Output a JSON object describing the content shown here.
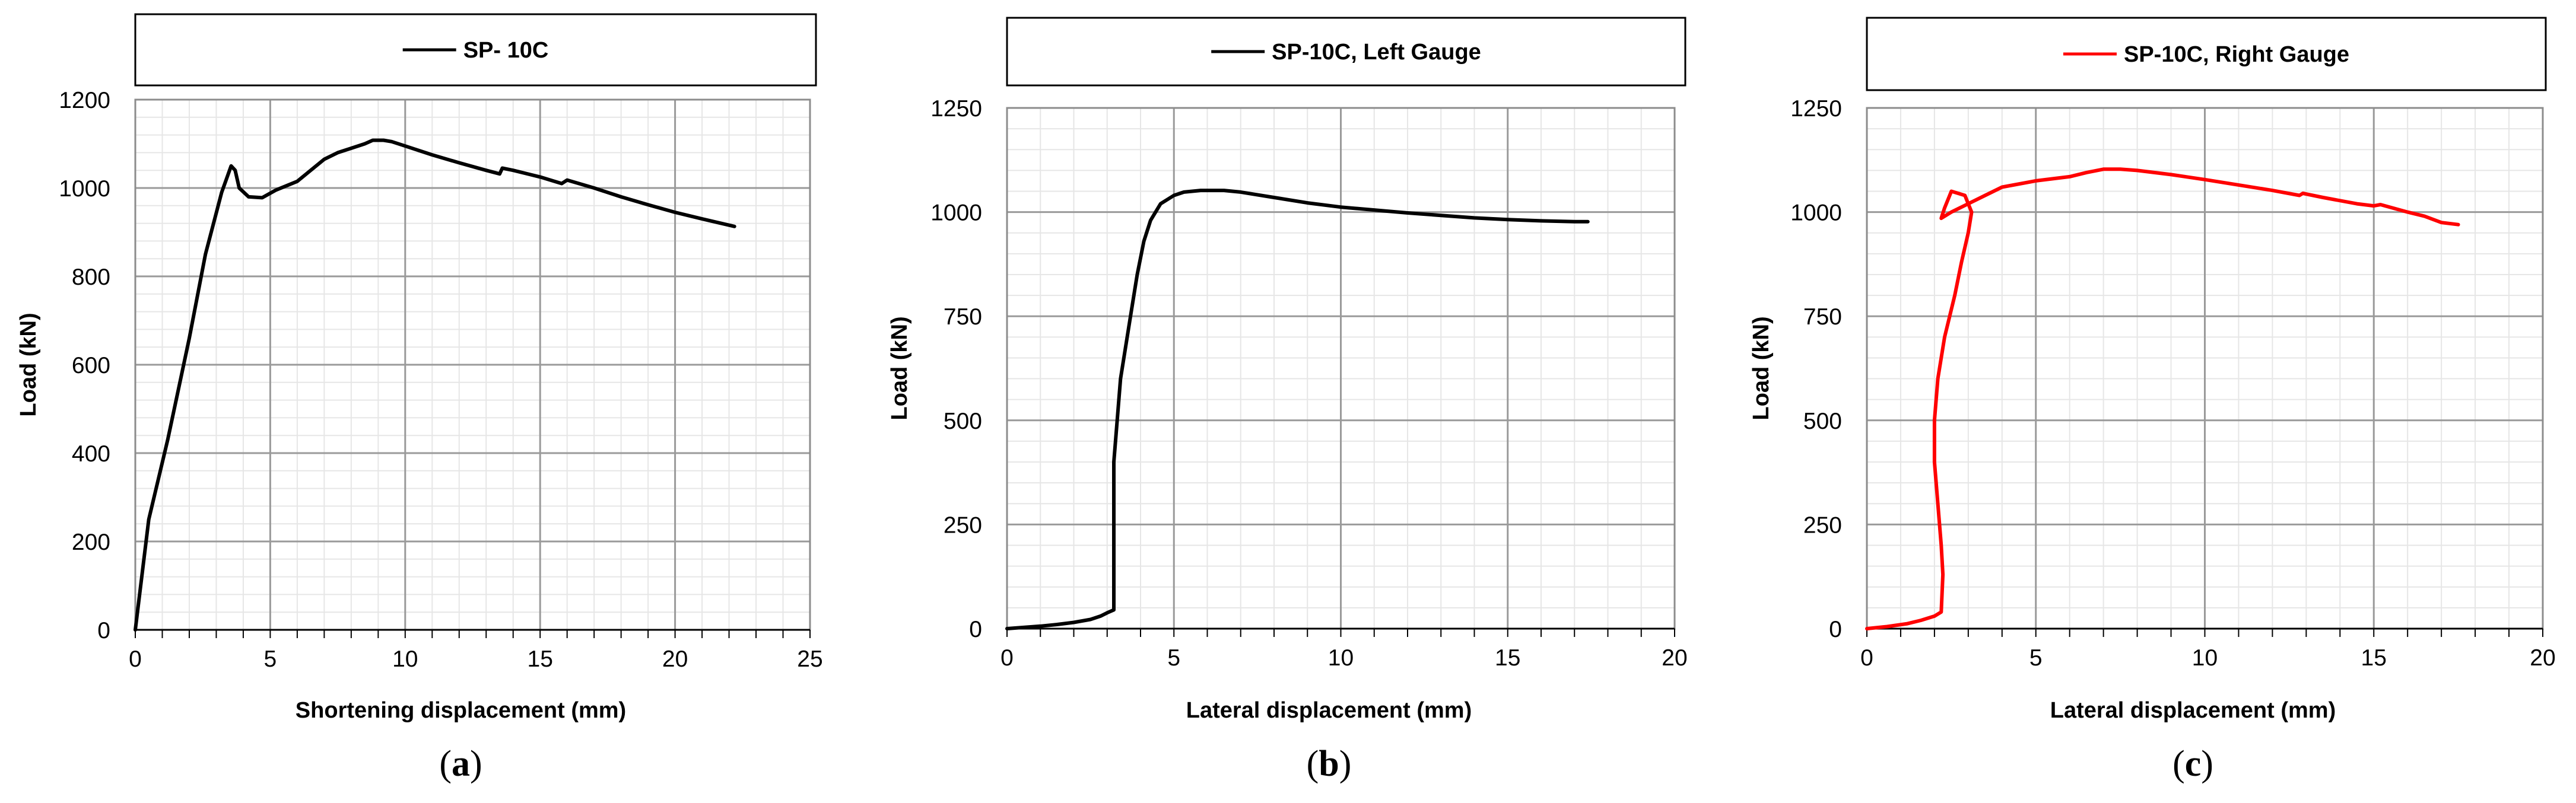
{
  "chart_data": [
    {
      "type": "line",
      "panel_label": "a",
      "legend_position": "top",
      "grid": true,
      "xlabel": "Shortening displacement (mm)",
      "ylabel": "Load (kN)",
      "xlim": [
        0,
        25
      ],
      "ylim": [
        0,
        1200
      ],
      "xticks": [
        0,
        5,
        10,
        15,
        20,
        25
      ],
      "yticks": [
        0,
        200,
        400,
        600,
        800,
        1000,
        1200
      ],
      "series": [
        {
          "name": "SP- 10C",
          "color": "#000000",
          "x": [
            0,
            0.5,
            1.2,
            2.0,
            2.6,
            3.2,
            3.55,
            3.7,
            3.85,
            4.2,
            4.7,
            5.2,
            6.0,
            6.5,
            7.0,
            7.5,
            8.0,
            8.5,
            8.8,
            9.2,
            9.5,
            10.0,
            11.0,
            12.0,
            13.0,
            13.5,
            13.6,
            14.0,
            15.0,
            15.8,
            16.0,
            17.0,
            18.0,
            19.0,
            20.0,
            21.0,
            22.2
          ],
          "y": [
            0,
            250,
            430,
            660,
            850,
            990,
            1050,
            1040,
            1000,
            980,
            978,
            995,
            1015,
            1040,
            1065,
            1080,
            1090,
            1100,
            1108,
            1108,
            1105,
            1095,
            1075,
            1057,
            1040,
            1032,
            1045,
            1040,
            1025,
            1010,
            1018,
            1000,
            980,
            962,
            945,
            930,
            913
          ]
        }
      ]
    },
    {
      "type": "line",
      "panel_label": "b",
      "legend_position": "top",
      "grid": true,
      "xlabel": "Lateral displacement (mm)",
      "ylabel": "Load (kN)",
      "xlim": [
        0,
        20
      ],
      "ylim": [
        0,
        1250
      ],
      "xticks": [
        0,
        5,
        10,
        15,
        20
      ],
      "yticks": [
        0,
        250,
        500,
        750,
        1000,
        1250
      ],
      "series": [
        {
          "name": "SP-10C, Left Gauge",
          "color": "#000000",
          "x": [
            0,
            0.5,
            1.0,
            1.5,
            2.0,
            2.5,
            2.8,
            3.0,
            3.2,
            3.2,
            3.4,
            3.7,
            3.9,
            4.1,
            4.3,
            4.6,
            5.0,
            5.3,
            5.8,
            6.5,
            7.0,
            8.0,
            9.0,
            10.0,
            11.0,
            12.0,
            13.0,
            14.0,
            15.0,
            16.0,
            17.0,
            17.4
          ],
          "y": [
            0,
            3,
            6,
            10,
            15,
            22,
            30,
            38,
            45,
            400,
            600,
            750,
            850,
            930,
            980,
            1020,
            1040,
            1048,
            1052,
            1052,
            1048,
            1035,
            1022,
            1012,
            1005,
            998,
            992,
            986,
            982,
            979,
            977,
            977
          ]
        }
      ]
    },
    {
      "type": "line",
      "panel_label": "c",
      "legend_position": "top",
      "grid": true,
      "xlabel": "Lateral displacement (mm)",
      "ylabel": "Load (kN)",
      "xlim": [
        0,
        20
      ],
      "ylim": [
        0,
        1250
      ],
      "xticks": [
        0,
        5,
        10,
        15,
        20
      ],
      "yticks": [
        0,
        250,
        500,
        750,
        1000,
        1250
      ],
      "series": [
        {
          "name": "SP-10C, Right Gauge",
          "color": "#ff0000",
          "x": [
            0,
            0.6,
            1.2,
            1.6,
            2.0,
            2.2,
            2.25,
            2.2,
            2.1,
            2.0,
            2.0,
            2.1,
            2.3,
            2.6,
            2.8,
            3.0,
            3.1,
            2.9,
            2.5,
            2.3,
            2.2,
            2.5,
            3.0,
            3.5,
            4.0,
            5.0,
            6.0,
            6.5,
            7.0,
            7.5,
            8.0,
            9.0,
            10.0,
            11.0,
            12.0,
            12.8,
            12.9,
            13.5,
            14.5,
            15.0,
            15.2,
            16.0,
            16.5,
            17.0,
            17.5
          ],
          "y": [
            0,
            5,
            12,
            20,
            30,
            40,
            130,
            200,
            300,
            400,
            500,
            600,
            700,
            800,
            880,
            950,
            1000,
            1040,
            1050,
            1010,
            985,
            1000,
            1020,
            1040,
            1060,
            1075,
            1085,
            1095,
            1103,
            1103,
            1100,
            1090,
            1078,
            1065,
            1052,
            1040,
            1045,
            1035,
            1020,
            1015,
            1018,
            1000,
            990,
            975,
            970
          ]
        }
      ]
    }
  ]
}
